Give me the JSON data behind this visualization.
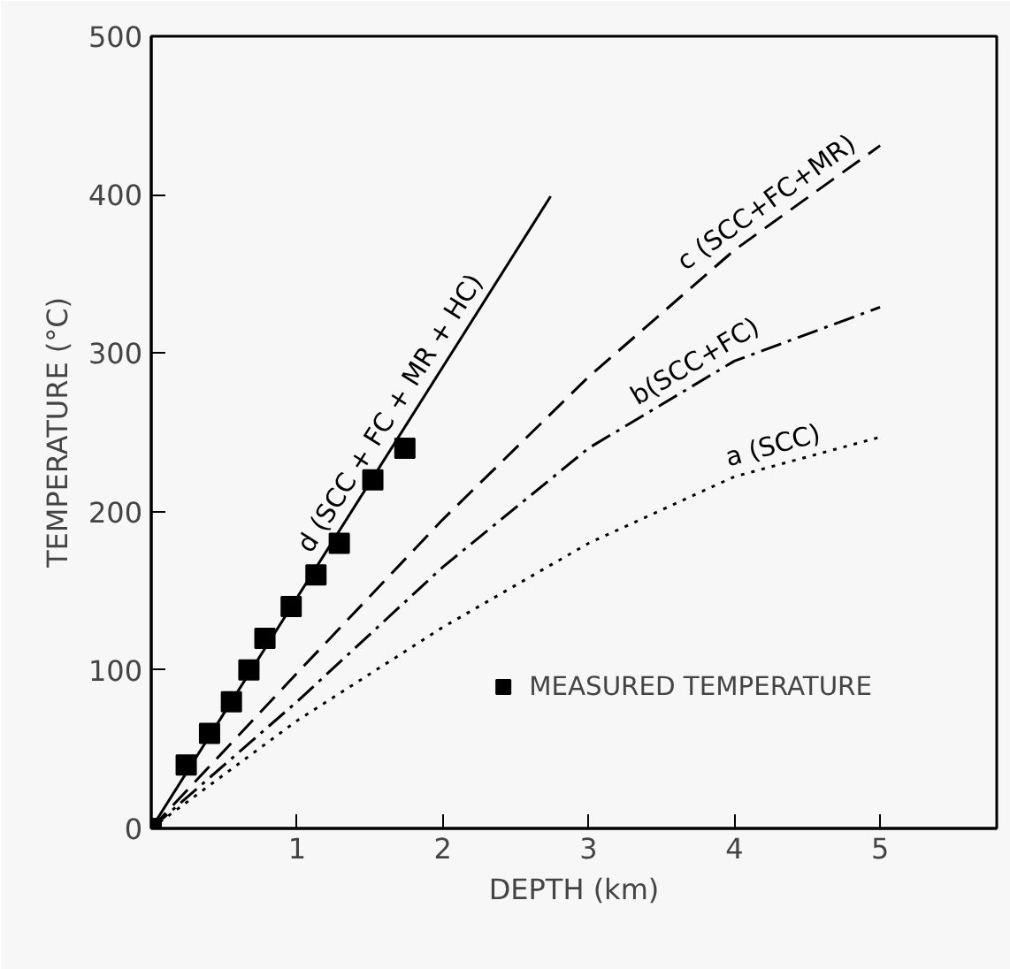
{
  "chart_data": {
    "type": "line",
    "xlabel": "DEPTH (km)",
    "ylabel": "TEMPERATURE (°C)",
    "xlim": [
      0,
      5.8
    ],
    "ylim": [
      0,
      500
    ],
    "xticks": [
      1,
      2,
      3,
      4,
      5
    ],
    "yticks": [
      0,
      100,
      200,
      300,
      400,
      500
    ],
    "grid": false,
    "legend": "bottom right",
    "series": [
      {
        "name": "d (SCC + FC + MR + HC)",
        "line_style": "solid",
        "color": "#000000",
        "x": [
          0,
          2.74
        ],
        "values": [
          0,
          399
        ]
      },
      {
        "name": "c (SCC+FC+MR)",
        "line_style": "dashed",
        "color": "#000000",
        "x": [
          0,
          1,
          2,
          3,
          4,
          5
        ],
        "values": [
          0,
          98,
          195,
          285,
          365,
          431
        ]
      },
      {
        "name": "b(SCC+FC)",
        "line_style": "dashdot",
        "color": "#000000",
        "x": [
          0,
          1,
          2,
          3,
          4,
          5
        ],
        "values": [
          0,
          80,
          165,
          240,
          295,
          329
        ]
      },
      {
        "name": "a (SCC)",
        "line_style": "dotted",
        "color": "#000000",
        "x": [
          0,
          1,
          2,
          3,
          4,
          5
        ],
        "values": [
          0,
          68,
          127,
          180,
          222,
          247
        ]
      },
      {
        "name": "MEASURED TEMPERATURE",
        "type": "scatter",
        "marker": "square",
        "color": "#000000",
        "x": [
          0,
          0.24,
          0.4,
          0.55,
          0.67,
          0.78,
          0.96,
          1.13,
          1.29,
          1.52,
          1.74
        ],
        "values": [
          0,
          40,
          60,
          80,
          100,
          120,
          140,
          160,
          180,
          220,
          240
        ]
      }
    ]
  }
}
